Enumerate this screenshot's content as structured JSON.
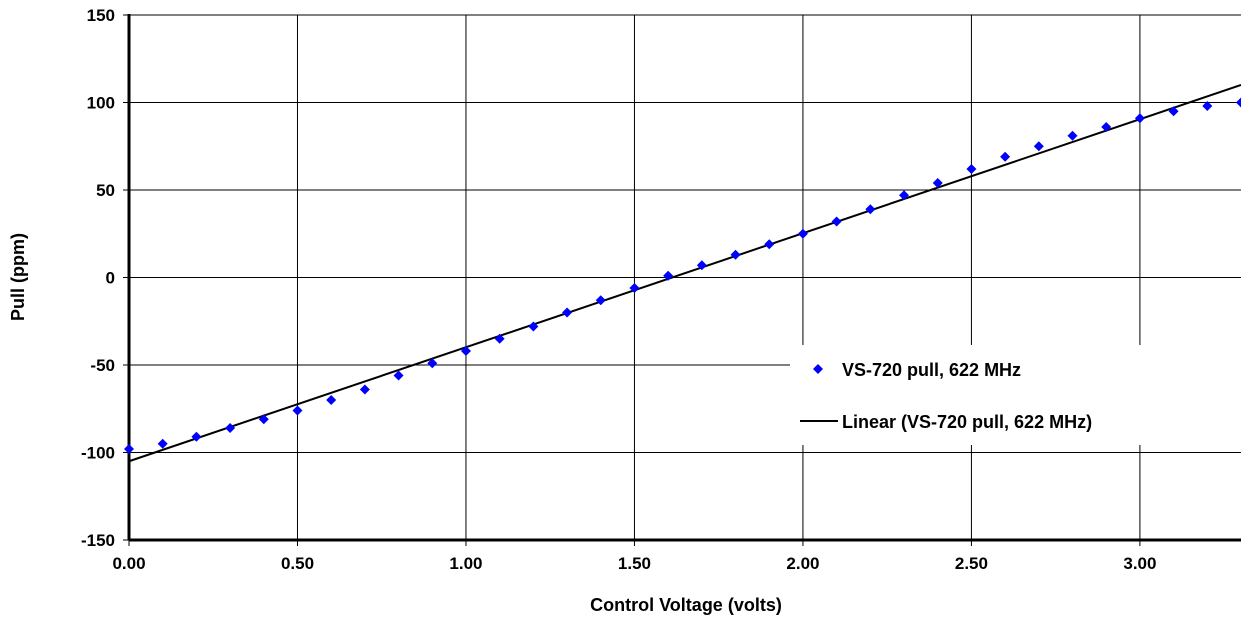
{
  "chart_data": {
    "type": "scatter",
    "xlabel": "Control Voltage (volts)",
    "ylabel": "Pull (ppm)",
    "xlim": [
      0,
      3.3
    ],
    "ylim": [
      -150,
      150
    ],
    "x_ticks": [
      "0.00",
      "0.50",
      "1.00",
      "1.50",
      "2.00",
      "2.50",
      "3.00"
    ],
    "y_ticks": [
      "150",
      "100",
      "50",
      "0",
      "-50",
      "-100",
      "-150"
    ],
    "grid": true,
    "legend_position": "right",
    "series": [
      {
        "name": "VS-720 pull, 622 MHz",
        "kind": "scatter",
        "marker": "diamond",
        "color": "#0000ff",
        "x": [
          0.0,
          0.1,
          0.2,
          0.3,
          0.4,
          0.5,
          0.6,
          0.7,
          0.8,
          0.9,
          1.0,
          1.1,
          1.2,
          1.3,
          1.4,
          1.5,
          1.6,
          1.7,
          1.8,
          1.9,
          2.0,
          2.1,
          2.2,
          2.3,
          2.4,
          2.5,
          2.6,
          2.7,
          2.8,
          2.9,
          3.0,
          3.1,
          3.2,
          3.3
        ],
        "y": [
          -98,
          -95,
          -91,
          -86,
          -81,
          -76,
          -70,
          -64,
          -56,
          -49,
          -42,
          -35,
          -28,
          -20,
          -13,
          -6,
          1,
          7,
          13,
          19,
          25,
          32,
          39,
          47,
          54,
          62,
          69,
          75,
          81,
          86,
          91,
          95,
          98,
          100
        ]
      },
      {
        "name": "Linear (VS-720 pull, 622 MHz)",
        "kind": "line",
        "color": "#000000",
        "x": [
          0.0,
          3.3
        ],
        "y": [
          -105,
          110
        ]
      }
    ]
  }
}
